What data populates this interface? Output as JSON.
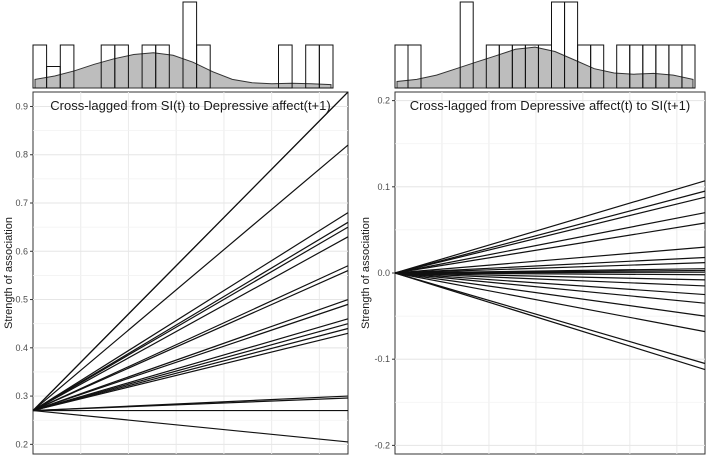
{
  "chart_data": [
    {
      "type": "line",
      "title": "Cross-lagged from SI(t) to Depressive affect(t+1)",
      "xlabel": "",
      "ylabel": "Strength of association",
      "ylim": [
        0.18,
        0.93
      ],
      "yticks": [
        0.2,
        0.3,
        0.4,
        0.5,
        0.6,
        0.7,
        0.8,
        0.9
      ],
      "ytick_labels": [
        "0.2",
        "0.3",
        "0.4",
        "0.5",
        "0.6",
        "0.7",
        "0.8",
        "0.9"
      ],
      "grid": true,
      "origin": 0.27,
      "end_values": [
        0.93,
        0.93,
        0.82,
        0.68,
        0.66,
        0.65,
        0.63,
        0.57,
        0.56,
        0.5,
        0.49,
        0.46,
        0.45,
        0.44,
        0.43,
        0.3,
        0.296,
        0.27,
        0.205
      ],
      "histogram": {
        "bar_heights": [
          1.0,
          0.5,
          1.0,
          0.0,
          0.0,
          1.0,
          1.0,
          0.0,
          1.0,
          1.0,
          0.0,
          2.0,
          1.0,
          0.0,
          0.0,
          0.0,
          0.0,
          0.0,
          1.0,
          0.0,
          1.0,
          1.0
        ],
        "density": [
          0.2,
          0.28,
          0.4,
          0.55,
          0.68,
          0.78,
          0.82,
          0.76,
          0.6,
          0.38,
          0.2,
          0.12,
          0.1,
          0.11,
          0.1,
          0.08
        ]
      }
    },
    {
      "type": "line",
      "title": "Cross-lagged from Depressive affect(t) to SI(t+1)",
      "xlabel": "",
      "ylabel": "Strength of association",
      "ylim": [
        -0.21,
        0.21
      ],
      "yticks": [
        -0.2,
        -0.1,
        0.0,
        0.1,
        0.2
      ],
      "ytick_labels": [
        "-0.2",
        "-0.1",
        "0.0",
        "0.1",
        "0.2"
      ],
      "grid": true,
      "origin": 0.0,
      "end_values": [
        0.107,
        0.095,
        0.088,
        0.07,
        0.058,
        0.03,
        0.018,
        0.012,
        0.005,
        0.003,
        0.001,
        -0.002,
        -0.008,
        -0.015,
        -0.025,
        -0.035,
        -0.05,
        -0.068,
        -0.105,
        -0.112
      ],
      "histogram": {
        "bar_heights": [
          1.0,
          1.0,
          0.0,
          0.0,
          0.0,
          2.0,
          0.0,
          1.0,
          1.0,
          1.0,
          1.0,
          1.0,
          2.0,
          2.0,
          1.0,
          1.0,
          0.0,
          1.0,
          1.0,
          1.0,
          1.0,
          1.0,
          1.0
        ],
        "density": [
          0.15,
          0.2,
          0.3,
          0.45,
          0.6,
          0.75,
          0.9,
          0.95,
          0.85,
          0.65,
          0.45,
          0.35,
          0.32,
          0.34,
          0.3,
          0.2
        ]
      }
    }
  ]
}
